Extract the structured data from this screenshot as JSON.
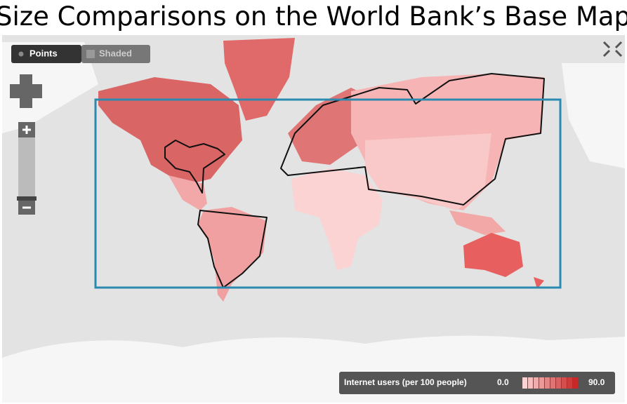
{
  "header": {
    "title": "Size Comparisons on the World Bank’s Base Map"
  },
  "controls": {
    "points": "Points",
    "shaded": "Shaded"
  },
  "legend": {
    "label": "Internet users (per 100 people)",
    "min": "0.0",
    "max": "90.0"
  }
}
